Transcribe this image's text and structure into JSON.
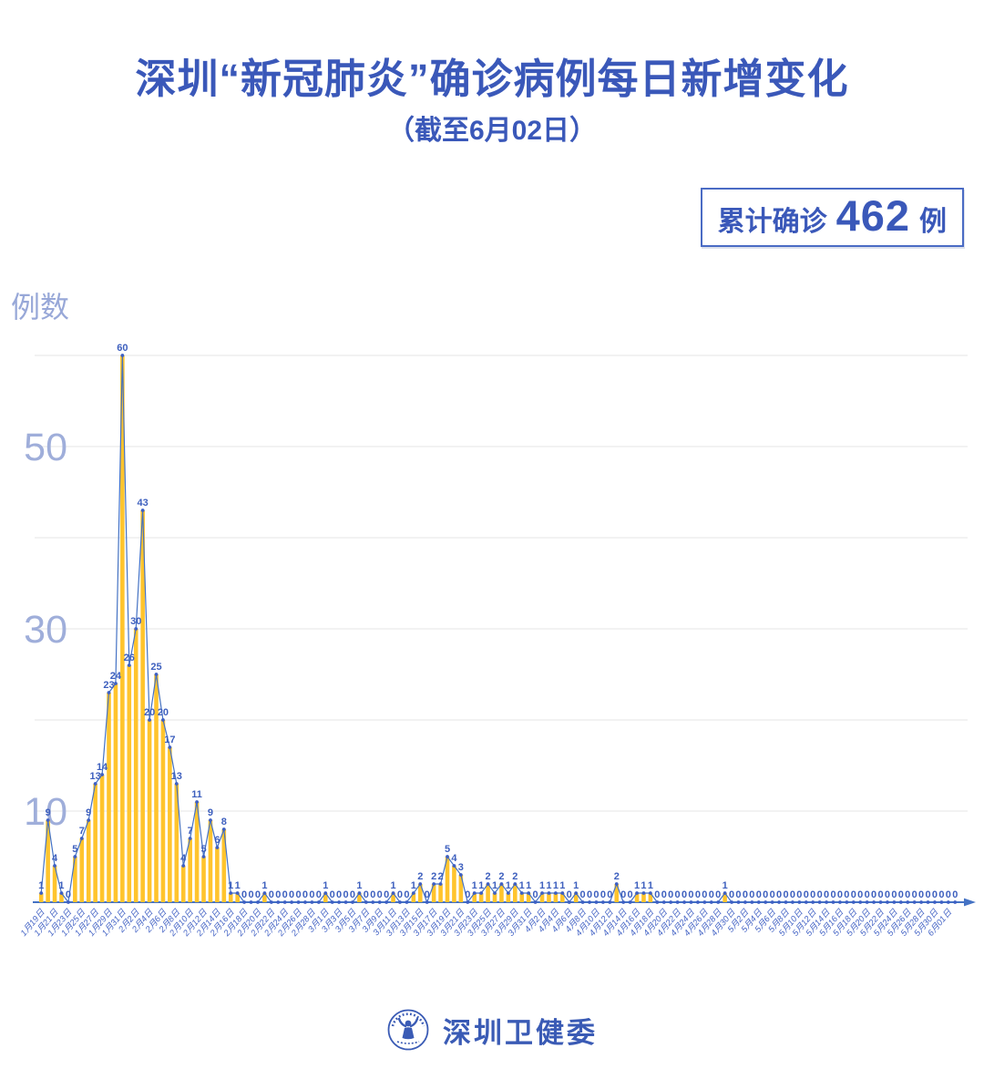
{
  "header": {
    "title": "深圳“新冠肺炎”确诊病例每日新增变化",
    "subtitle": "（截至6月02日）"
  },
  "badge": {
    "prefix": "累计确诊",
    "value": "462",
    "suffix": "例"
  },
  "footer": {
    "org": "深圳卫健委",
    "logo_icon": "shenzhen-health-commission-emblem"
  },
  "chart_data": {
    "type": "bar",
    "line_overlay": true,
    "title": "深圳“新冠肺炎”确诊病例每日新增变化",
    "subtitle": "（截至6月02日）",
    "xlabel": "",
    "ylabel": "例数",
    "ylim": [
      0,
      60
    ],
    "yticks_labeled": [
      10,
      30,
      50
    ],
    "gridlines": [
      10,
      20,
      30,
      40,
      50,
      60
    ],
    "grid": "on",
    "legend": "none",
    "start_date": "1月19日",
    "end_date": "6月02日",
    "tick_interval": 2,
    "x_tick_labels": [
      "1月19日",
      "1月21日",
      "1月23日",
      "1月25日",
      "1月27日",
      "1月29日",
      "1月31日",
      "2月2日",
      "2月4日",
      "2月6日",
      "2月8日",
      "2月10日",
      "2月12日",
      "2月14日",
      "2月16日",
      "2月18日",
      "2月20日",
      "2月22日",
      "2月24日",
      "2月26日",
      "2月28日",
      "3月1日",
      "3月3日",
      "3月5日",
      "3月7日",
      "3月9日",
      "3月11日",
      "3月13日",
      "3月15日",
      "3月17日",
      "3月19日",
      "3月21日",
      "3月23日",
      "3月25日",
      "3月27日",
      "3月29日",
      "3月31日",
      "4月2日",
      "4月4日",
      "4月6日",
      "4月8日",
      "4月10日",
      "4月12日",
      "4月14日",
      "4月16日",
      "4月18日",
      "4月20日",
      "4月22日",
      "4月24日",
      "4月26日",
      "4月28日",
      "4月30日",
      "5月2日",
      "5月4日",
      "5月6日",
      "5月8日",
      "5月10日",
      "5月12日",
      "5月14日",
      "5月16日",
      "5月18日",
      "5月20日",
      "5月22日",
      "5月24日",
      "5月26日",
      "5月28日",
      "5月30日",
      "6月01日"
    ],
    "values": [
      1,
      9,
      4,
      1,
      0,
      5,
      7,
      9,
      13,
      14,
      23,
      24,
      60,
      26,
      30,
      43,
      20,
      25,
      20,
      17,
      13,
      4,
      7,
      11,
      5,
      9,
      6,
      8,
      1,
      1,
      0,
      0,
      0,
      1,
      0,
      0,
      0,
      0,
      0,
      0,
      0,
      0,
      1,
      0,
      0,
      0,
      0,
      1,
      0,
      0,
      0,
      0,
      1,
      0,
      0,
      1,
      2,
      0,
      2,
      2,
      5,
      4,
      3,
      0,
      1,
      1,
      2,
      1,
      2,
      1,
      2,
      1,
      1,
      0,
      1,
      1,
      1,
      1,
      0,
      1,
      0,
      0,
      0,
      0,
      0,
      2,
      0,
      0,
      1,
      1,
      1,
      0,
      0,
      0,
      0,
      0,
      0,
      0,
      0,
      0,
      0,
      1,
      0,
      0,
      0,
      0,
      0,
      0,
      0,
      0,
      0,
      0,
      0,
      0,
      0,
      0,
      0,
      0,
      0,
      0,
      0,
      0,
      0,
      0,
      0,
      0,
      0,
      0,
      0,
      0,
      0,
      0,
      0,
      0,
      0,
      0
    ],
    "cumulative_total": 462,
    "colors": {
      "bar": "#FFC42D",
      "line": "#4472C4",
      "point": "#3E60C4",
      "value_label": "#3D5FBE",
      "x_tick_label": "#4766C6",
      "y_tick_label": "#9FAEDA",
      "grid": "#EBEBEB",
      "axis": "#4472C4",
      "title": "#3A58B9"
    }
  }
}
